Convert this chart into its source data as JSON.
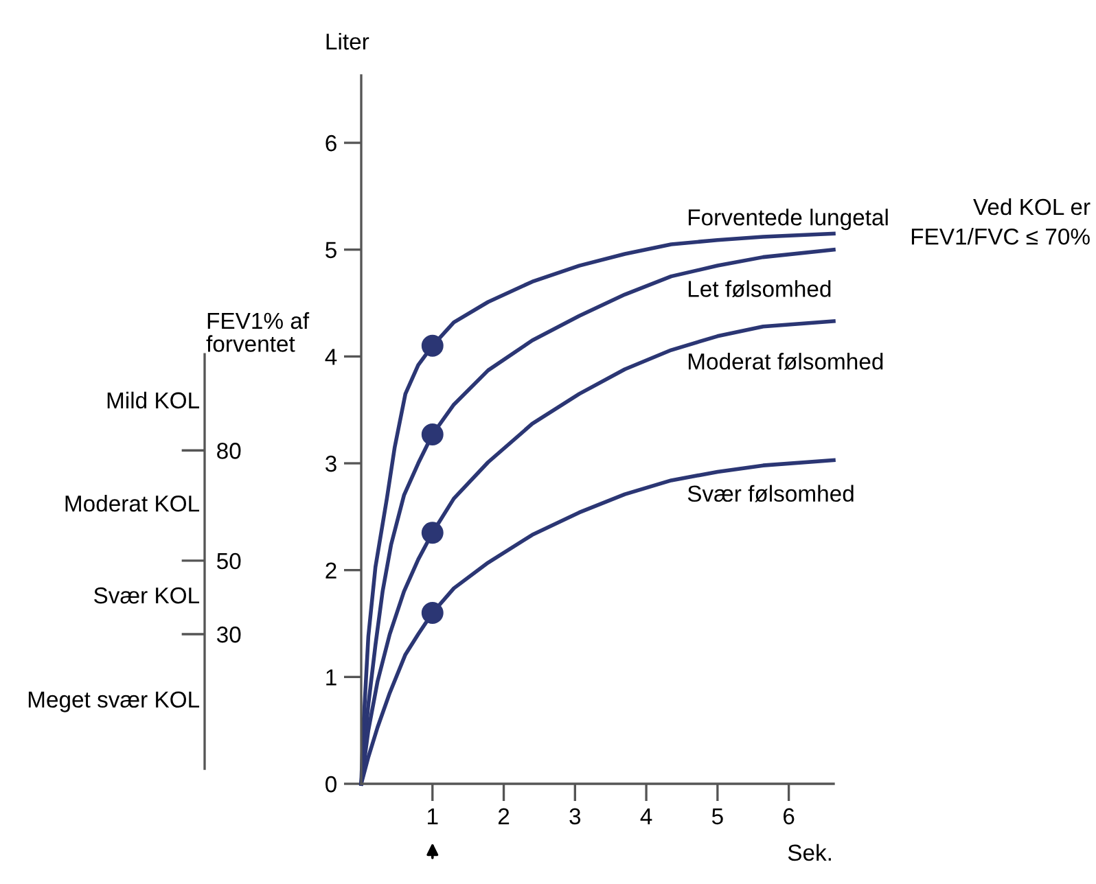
{
  "chart_data": {
    "type": "line",
    "xlabel": "Sek.",
    "ylabel": "Liter",
    "y2label": "FEV1% af\nforventet",
    "xlim": [
      0,
      6.63
    ],
    "ylim": [
      0,
      6.63
    ],
    "xticks": [
      1,
      2,
      3,
      4,
      5,
      6
    ],
    "yticks": [
      0,
      1,
      2,
      3,
      4,
      5,
      6
    ],
    "y2lim": [
      -10.7,
      182
    ],
    "y2ticks": [
      80,
      50,
      30
    ],
    "grid": false,
    "legend": false,
    "line_style": "solid",
    "marker": "none",
    "series": [
      {
        "name": "Forventede lungetal",
        "color": "#2b3674",
        "x": [
          0,
          0.03,
          0.1,
          0.2,
          0.36,
          0.47,
          0.62,
          0.8,
          1,
          1.3,
          1.78,
          2.4,
          3.06,
          3.7,
          4.35,
          5,
          5.64,
          6.63
        ],
        "values": [
          0,
          0.53,
          1.38,
          2.03,
          2.67,
          3.15,
          3.65,
          3.92,
          4.1,
          4.32,
          4.51,
          4.7,
          4.85,
          4.96,
          5.05,
          5.09,
          5.12,
          5.15
        ]
      },
      {
        "name": "Let følsomhed",
        "color": "#2b3674",
        "x": [
          0,
          0.05,
          0.1,
          0.2,
          0.3,
          0.42,
          0.6,
          0.8,
          1,
          1.3,
          1.78,
          2.4,
          3.06,
          3.7,
          4.35,
          5,
          5.64,
          6.63
        ],
        "values": [
          0,
          0.4,
          0.74,
          1.3,
          1.8,
          2.24,
          2.7,
          3.0,
          3.27,
          3.55,
          3.87,
          4.15,
          4.38,
          4.58,
          4.75,
          4.85,
          4.93,
          5.0
        ]
      },
      {
        "name": "Moderat følsomhed",
        "color": "#2b3674",
        "x": [
          0,
          0.1,
          0.23,
          0.4,
          0.6,
          0.8,
          1,
          1.3,
          1.78,
          2.4,
          3.06,
          3.7,
          4.35,
          5,
          5.64,
          6.63
        ],
        "values": [
          0,
          0.5,
          0.96,
          1.4,
          1.8,
          2.1,
          2.35,
          2.67,
          3.01,
          3.37,
          3.65,
          3.88,
          4.06,
          4.19,
          4.28,
          4.33
        ]
      },
      {
        "name": "Svær følsomhed",
        "color": "#2b3674",
        "x": [
          0,
          0.1,
          0.23,
          0.4,
          0.62,
          0.8,
          1,
          1.3,
          1.78,
          2.4,
          3.06,
          3.7,
          4.35,
          5,
          5.64,
          6.63
        ],
        "values": [
          0,
          0.25,
          0.53,
          0.85,
          1.21,
          1.4,
          1.6,
          1.83,
          2.07,
          2.33,
          2.54,
          2.71,
          2.84,
          2.92,
          2.98,
          3.03
        ]
      },
      {
        "type": "scatter",
        "marker": "circle",
        "color": "#2b3674",
        "x": [
          1,
          1,
          1,
          1
        ],
        "values": [
          4.1,
          3.27,
          2.35,
          1.6
        ]
      }
    ],
    "annotations": [
      "Mild KOL",
      "Moderat KOL",
      "Svær KOL",
      "Meget svær KOL",
      "Ved KOL er\nFEV1/FVC ≤ 70%"
    ]
  }
}
